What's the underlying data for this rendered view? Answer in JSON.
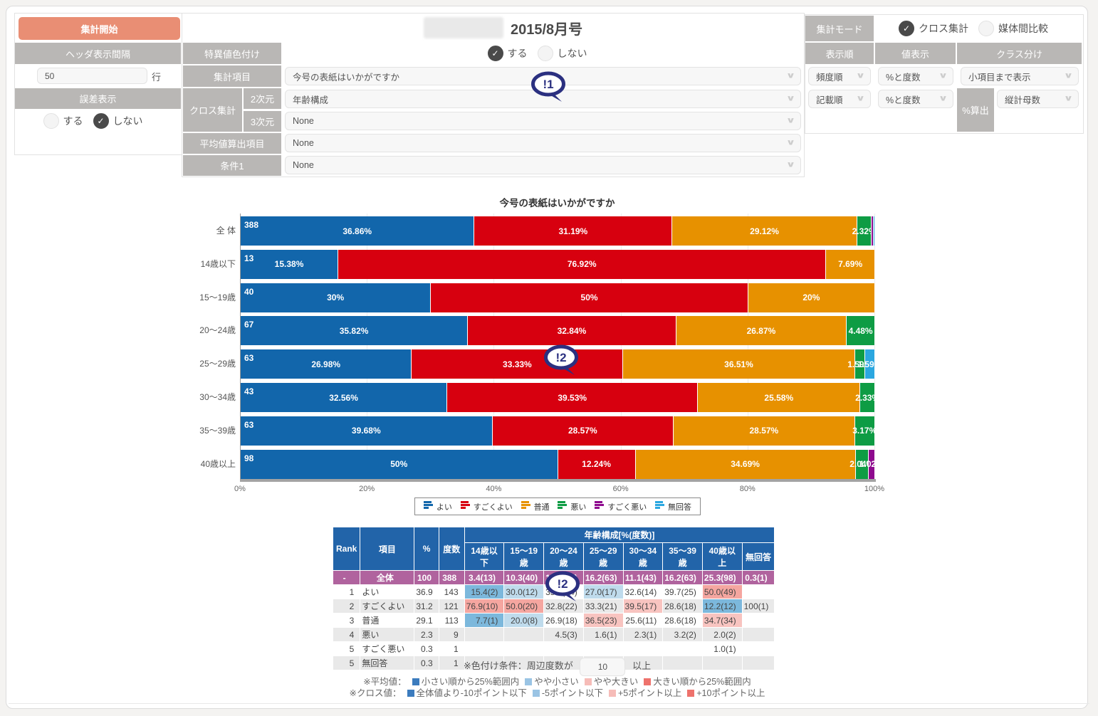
{
  "header": {
    "start_button": "集計開始",
    "interval_label": "ヘッダ表示間隔",
    "interval_value": "50",
    "interval_unit": "行",
    "error_label": "誤差表示",
    "opt_yes": "する",
    "opt_no": "しない",
    "title_issue": "2015/8月号",
    "outlier_label": "特異値色付け",
    "agg_item_label": "集計項目",
    "agg_item_value": "今号の表紙はいかがですか",
    "cross_label": "クロス集計",
    "dim2_label": "2次元",
    "dim2_value": "年齢構成",
    "dim3_label": "3次元",
    "dim3_value": "None",
    "avg_label": "平均値算出項目",
    "avg_value": "None",
    "cond1_label": "条件1",
    "cond1_value": "None",
    "mode_label": "集計モード",
    "mode_cross": "クロス集計",
    "mode_media": "媒体間比較",
    "sort_label": "表示順",
    "value_label": "値表示",
    "class_label": "クラス分け",
    "sort1_value": "頻度順",
    "value1_value": "%と度数",
    "class1_value": "小項目まで表示",
    "sort2_value": "記載順",
    "value2_value": "%と度数",
    "pctcalc_label": "%算出",
    "pctcalc_value": "縦計母数"
  },
  "badges": {
    "b1": "!1",
    "b2": "!2"
  },
  "chart_data": {
    "type": "bar",
    "variant": "horizontal-stacked",
    "title": "今号の表紙はいかがですか",
    "xlim": [
      0,
      100
    ],
    "x_ticks": [
      "0%",
      "20%",
      "40%",
      "60%",
      "80%",
      "100%"
    ],
    "series": [
      {
        "name": "よい",
        "color": "#1266ab"
      },
      {
        "name": "すごくよい",
        "color": "#d7000f"
      },
      {
        "name": "普通",
        "color": "#e79100"
      },
      {
        "name": "悪い",
        "color": "#0e9c44"
      },
      {
        "name": "すごく悪い",
        "color": "#8e0a8e"
      },
      {
        "name": "無回答",
        "color": "#2ba7e0"
      }
    ],
    "rows": [
      {
        "label": "全 体",
        "count": 388,
        "values": [
          36.86,
          31.19,
          29.12,
          2.32,
          0.26,
          0.26
        ],
        "labels": [
          "36.86%",
          "31.19%",
          "29.12%",
          "2.32%",
          "",
          ""
        ]
      },
      {
        "label": "14歳以下",
        "count": 13,
        "values": [
          15.38,
          76.92,
          7.69,
          0,
          0,
          0
        ],
        "labels": [
          "15.38%",
          "76.92%",
          "7.69%",
          "",
          "",
          ""
        ]
      },
      {
        "label": "15〜19歳",
        "count": 40,
        "values": [
          30,
          50,
          20,
          0,
          0,
          0
        ],
        "labels": [
          "30%",
          "50%",
          "20%",
          "",
          "",
          ""
        ]
      },
      {
        "label": "20〜24歳",
        "count": 67,
        "values": [
          35.82,
          32.84,
          26.87,
          4.48,
          0,
          0
        ],
        "labels": [
          "35.82%",
          "32.84%",
          "26.87%",
          "4.48%",
          "",
          ""
        ]
      },
      {
        "label": "25〜29歳",
        "count": 63,
        "values": [
          26.98,
          33.33,
          36.51,
          1.59,
          0,
          1.59
        ],
        "labels": [
          "26.98%",
          "33.33%",
          "36.51%",
          "1.59%",
          "",
          "1.59%"
        ]
      },
      {
        "label": "30〜34歳",
        "count": 43,
        "values": [
          32.56,
          39.53,
          25.58,
          2.33,
          0,
          0
        ],
        "labels": [
          "32.56%",
          "39.53%",
          "25.58%",
          "2.33%",
          "",
          ""
        ]
      },
      {
        "label": "35〜39歳",
        "count": 63,
        "values": [
          39.68,
          28.57,
          28.57,
          3.17,
          0,
          0
        ],
        "labels": [
          "39.68%",
          "28.57%",
          "28.57%",
          "3.17%",
          "",
          ""
        ]
      },
      {
        "label": "40歳以上",
        "count": 98,
        "values": [
          50,
          12.24,
          34.69,
          2.04,
          1.02,
          0
        ],
        "labels": [
          "50%",
          "12.24%",
          "34.69%",
          "2.04%",
          "1.02%",
          ""
        ]
      }
    ]
  },
  "table": {
    "h_rank": "Rank",
    "h_item": "項目",
    "h_pct": "%",
    "h_freq": "度数",
    "h_group": "年齢構成[%(度数)]",
    "age_headers": [
      "14歳以下",
      "15〜19歳",
      "20〜24歳",
      "25〜29歳",
      "30〜34歳",
      "35〜39歳",
      "40歳以上",
      "無回答"
    ],
    "total_row": {
      "rank": "-",
      "item": "全体",
      "pct": "100",
      "freq": "388",
      "cells": [
        "3.4(13)",
        "10.3(40)",
        "17.3(67)",
        "16.2(63)",
        "11.1(43)",
        "16.2(63)",
        "25.3(98)",
        "0.3(1)"
      ]
    },
    "rows": [
      {
        "rank": "1",
        "item": "よい",
        "pct": "36.9",
        "freq": "143",
        "cells": [
          {
            "t": "15.4(2)",
            "c": "b"
          },
          {
            "t": "30.0(12)",
            "c": "lb"
          },
          {
            "t": "35.8(24)"
          },
          {
            "t": "27.0(17)",
            "c": "lb"
          },
          {
            "t": "32.6(14)"
          },
          {
            "t": "39.7(25)"
          },
          {
            "t": "50.0(49)",
            "c": "p"
          },
          {
            "t": ""
          }
        ]
      },
      {
        "rank": "2",
        "item": "すごくよい",
        "pct": "31.2",
        "freq": "121",
        "cells": [
          {
            "t": "76.9(10)",
            "c": "p"
          },
          {
            "t": "50.0(20)",
            "c": "p"
          },
          {
            "t": "32.8(22)"
          },
          {
            "t": "33.3(21)"
          },
          {
            "t": "39.5(17)",
            "c": "lp"
          },
          {
            "t": "28.6(18)"
          },
          {
            "t": "12.2(12)",
            "c": "b"
          },
          {
            "t": "100(1)"
          }
        ]
      },
      {
        "rank": "3",
        "item": "普通",
        "pct": "29.1",
        "freq": "113",
        "cells": [
          {
            "t": "7.7(1)",
            "c": "b"
          },
          {
            "t": "20.0(8)",
            "c": "lb"
          },
          {
            "t": "26.9(18)"
          },
          {
            "t": "36.5(23)",
            "c": "lp"
          },
          {
            "t": "25.6(11)"
          },
          {
            "t": "28.6(18)"
          },
          {
            "t": "34.7(34)",
            "c": "lp"
          },
          {
            "t": ""
          }
        ]
      },
      {
        "rank": "4",
        "item": "悪い",
        "pct": "2.3",
        "freq": "9",
        "cells": [
          {
            "t": ""
          },
          {
            "t": ""
          },
          {
            "t": "4.5(3)"
          },
          {
            "t": "1.6(1)"
          },
          {
            "t": "2.3(1)"
          },
          {
            "t": "3.2(2)"
          },
          {
            "t": "2.0(2)"
          },
          {
            "t": ""
          }
        ]
      },
      {
        "rank": "5",
        "item": "すごく悪い",
        "pct": "0.3",
        "freq": "1",
        "cells": [
          {
            "t": ""
          },
          {
            "t": ""
          },
          {
            "t": ""
          },
          {
            "t": ""
          },
          {
            "t": ""
          },
          {
            "t": ""
          },
          {
            "t": "1.0(1)"
          },
          {
            "t": ""
          }
        ]
      },
      {
        "rank": "5",
        "item": "無回答",
        "pct": "0.3",
        "freq": "1",
        "cells": [
          {
            "t": ""
          },
          {
            "t": ""
          },
          {
            "t": ""
          },
          {
            "t": "1.6(1)"
          },
          {
            "t": ""
          },
          {
            "t": ""
          },
          {
            "t": ""
          },
          {
            "t": ""
          }
        ]
      }
    ]
  },
  "notes": {
    "cond_prefix": "※色付け条件：周辺度数が",
    "cond_value": "10",
    "cond_suffix": "以上",
    "avg_label": "※平均値：",
    "avg_items": [
      {
        "color": "#3c7cbe",
        "text": "小さい順から25%範囲内"
      },
      {
        "color": "#9ac4e4",
        "text": "やや小さい"
      },
      {
        "color": "#f6bcb8",
        "text": "やや大きい"
      },
      {
        "color": "#ee726c",
        "text": "大きい順から25%範囲内"
      }
    ],
    "cross_label": "※クロス値：",
    "cross_items": [
      {
        "color": "#3c7cbe",
        "text": "全体値より-10ポイント以下"
      },
      {
        "color": "#9ac4e4",
        "text": "-5ポイント以下"
      },
      {
        "color": "#f6bcb8",
        "text": "+5ポイント以上"
      },
      {
        "color": "#ee726c",
        "text": "+10ポイント以上"
      }
    ]
  }
}
